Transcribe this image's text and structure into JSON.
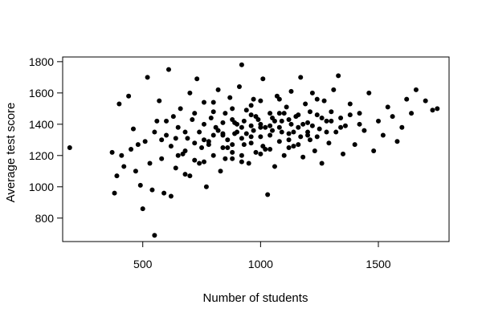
{
  "chart_data": {
    "type": "scatter",
    "title": "",
    "xlabel": "Number of students",
    "ylabel": "Average test score",
    "xlim": [
      160,
      1800
    ],
    "ylim": [
      650,
      1830
    ],
    "xticks": [
      500,
      1000,
      1500
    ],
    "yticks": [
      800,
      1000,
      1200,
      1400,
      1600,
      1800
    ],
    "grid": false,
    "legend": "none",
    "marker_color": "#000000",
    "points": [
      [
        190,
        1250
      ],
      [
        380,
        960
      ],
      [
        370,
        1220
      ],
      [
        390,
        1070
      ],
      [
        400,
        1530
      ],
      [
        410,
        1200
      ],
      [
        420,
        1130
      ],
      [
        440,
        1580
      ],
      [
        450,
        1240
      ],
      [
        460,
        1370
      ],
      [
        470,
        1100
      ],
      [
        480,
        1270
      ],
      [
        490,
        1010
      ],
      [
        500,
        860
      ],
      [
        510,
        1290
      ],
      [
        520,
        1700
      ],
      [
        530,
        1150
      ],
      [
        540,
        980
      ],
      [
        550,
        690
      ],
      [
        560,
        1420
      ],
      [
        570,
        1550
      ],
      [
        580,
        1180
      ],
      [
        590,
        960
      ],
      [
        600,
        1330
      ],
      [
        610,
        1750
      ],
      [
        620,
        1260
      ],
      [
        630,
        1450
      ],
      [
        640,
        1120
      ],
      [
        650,
        1380
      ],
      [
        660,
        1500
      ],
      [
        670,
        1210
      ],
      [
        680,
        1080
      ],
      [
        690,
        1310
      ],
      [
        700,
        1600
      ],
      [
        710,
        1430
      ],
      [
        720,
        1170
      ],
      [
        730,
        1690
      ],
      [
        740,
        1350
      ],
      [
        750,
        1250
      ],
      [
        760,
        1540
      ],
      [
        770,
        1000
      ],
      [
        780,
        1290
      ],
      [
        790,
        1440
      ],
      [
        800,
        1200
      ],
      [
        810,
        1380
      ],
      [
        820,
        1620
      ],
      [
        830,
        1100
      ],
      [
        840,
        1330
      ],
      [
        850,
        1470
      ],
      [
        860,
        1250
      ],
      [
        870,
        1570
      ],
      [
        880,
        1180
      ],
      [
        890,
        1410
      ],
      [
        900,
        1350
      ],
      [
        910,
        1640
      ],
      [
        920,
        1780
      ],
      [
        930,
        1270
      ],
      [
        940,
        1490
      ],
      [
        950,
        1150
      ],
      [
        960,
        1390
      ],
      [
        970,
        1560
      ],
      [
        980,
        1220
      ],
      [
        990,
        1430
      ],
      [
        1000,
        1320
      ],
      [
        1010,
        1690
      ],
      [
        1020,
        1240
      ],
      [
        1030,
        950
      ],
      [
        1040,
        1470
      ],
      [
        1050,
        1360
      ],
      [
        1060,
        1130
      ],
      [
        1070,
        1580
      ],
      [
        1080,
        1290
      ],
      [
        1090,
        1420
      ],
      [
        1100,
        1200
      ],
      [
        1110,
        1510
      ],
      [
        1120,
        1340
      ],
      [
        1130,
        1610
      ],
      [
        1140,
        1260
      ],
      [
        1150,
        1450
      ],
      [
        1160,
        1380
      ],
      [
        1170,
        1700
      ],
      [
        1180,
        1190
      ],
      [
        1190,
        1530
      ],
      [
        1200,
        1410
      ],
      [
        1210,
        1300
      ],
      [
        1220,
        1600
      ],
      [
        1230,
        1230
      ],
      [
        1240,
        1460
      ],
      [
        1250,
        1370
      ],
      [
        1260,
        1150
      ],
      [
        1270,
        1550
      ],
      [
        1280,
        1420
      ],
      [
        1290,
        1280
      ],
      [
        1300,
        1480
      ],
      [
        1310,
        1620
      ],
      [
        1320,
        1350
      ],
      [
        1330,
        1710
      ],
      [
        1340,
        1440
      ],
      [
        1350,
        1210
      ],
      [
        1360,
        1390
      ],
      [
        1380,
        1530
      ],
      [
        1400,
        1270
      ],
      [
        1420,
        1470
      ],
      [
        1440,
        1360
      ],
      [
        1460,
        1600
      ],
      [
        1480,
        1230
      ],
      [
        1500,
        1420
      ],
      [
        1520,
        1330
      ],
      [
        1540,
        1510
      ],
      [
        1560,
        1450
      ],
      [
        1580,
        1290
      ],
      [
        1600,
        1380
      ],
      [
        1620,
        1560
      ],
      [
        1640,
        1470
      ],
      [
        1660,
        1620
      ],
      [
        1700,
        1550
      ],
      [
        1730,
        1490
      ],
      [
        1750,
        1500
      ],
      [
        620,
        940
      ],
      [
        700,
        1070
      ],
      [
        740,
        1150
      ],
      [
        780,
        1270
      ],
      [
        820,
        1360
      ],
      [
        860,
        1300
      ],
      [
        900,
        1400
      ],
      [
        940,
        1340
      ],
      [
        980,
        1450
      ],
      [
        1020,
        1380
      ],
      [
        1060,
        1420
      ],
      [
        1100,
        1470
      ],
      [
        1140,
        1350
      ],
      [
        1180,
        1400
      ],
      [
        1220,
        1390
      ],
      [
        1260,
        1440
      ],
      [
        1300,
        1420
      ],
      [
        1340,
        1380
      ],
      [
        1380,
        1460
      ],
      [
        1420,
        1400
      ],
      [
        880,
        1220
      ],
      [
        920,
        1310
      ],
      [
        960,
        1280
      ],
      [
        1000,
        1400
      ],
      [
        1040,
        1330
      ],
      [
        1080,
        1380
      ],
      [
        1120,
        1300
      ],
      [
        1160,
        1460
      ],
      [
        1200,
        1350
      ],
      [
        1240,
        1320
      ],
      [
        850,
        1180
      ],
      [
        890,
        1340
      ],
      [
        930,
        1420
      ],
      [
        970,
        1360
      ],
      [
        1010,
        1260
      ],
      [
        1050,
        1440
      ],
      [
        1090,
        1350
      ],
      [
        1130,
        1400
      ],
      [
        1170,
        1320
      ],
      [
        1210,
        1480
      ],
      [
        760,
        1300
      ],
      [
        800,
        1330
      ],
      [
        840,
        1410
      ],
      [
        880,
        1270
      ],
      [
        920,
        1380
      ],
      [
        960,
        1460
      ],
      [
        1000,
        1210
      ],
      [
        1040,
        1390
      ],
      [
        1080,
        1470
      ],
      [
        1120,
        1250
      ],
      [
        650,
        1200
      ],
      [
        680,
        1350
      ],
      [
        720,
        1280
      ],
      [
        760,
        1400
      ],
      [
        800,
        1480
      ],
      [
        840,
        1250
      ],
      [
        880,
        1500
      ],
      [
        920,
        1200
      ],
      [
        960,
        1320
      ],
      [
        1000,
        1550
      ],
      [
        550,
        1350
      ],
      [
        580,
        1300
      ],
      [
        600,
        1420
      ],
      [
        640,
        1310
      ],
      [
        680,
        1230
      ],
      [
        720,
        1470
      ],
      [
        760,
        1160
      ],
      [
        800,
        1540
      ],
      [
        840,
        1340
      ],
      [
        880,
        1430
      ],
      [
        920,
        1160
      ],
      [
        960,
        1520
      ],
      [
        1000,
        1380
      ],
      [
        1040,
        1240
      ],
      [
        1080,
        1560
      ],
      [
        1120,
        1430
      ],
      [
        1160,
        1270
      ],
      [
        1200,
        1330
      ],
      [
        1240,
        1560
      ],
      [
        1280,
        1350
      ]
    ]
  }
}
